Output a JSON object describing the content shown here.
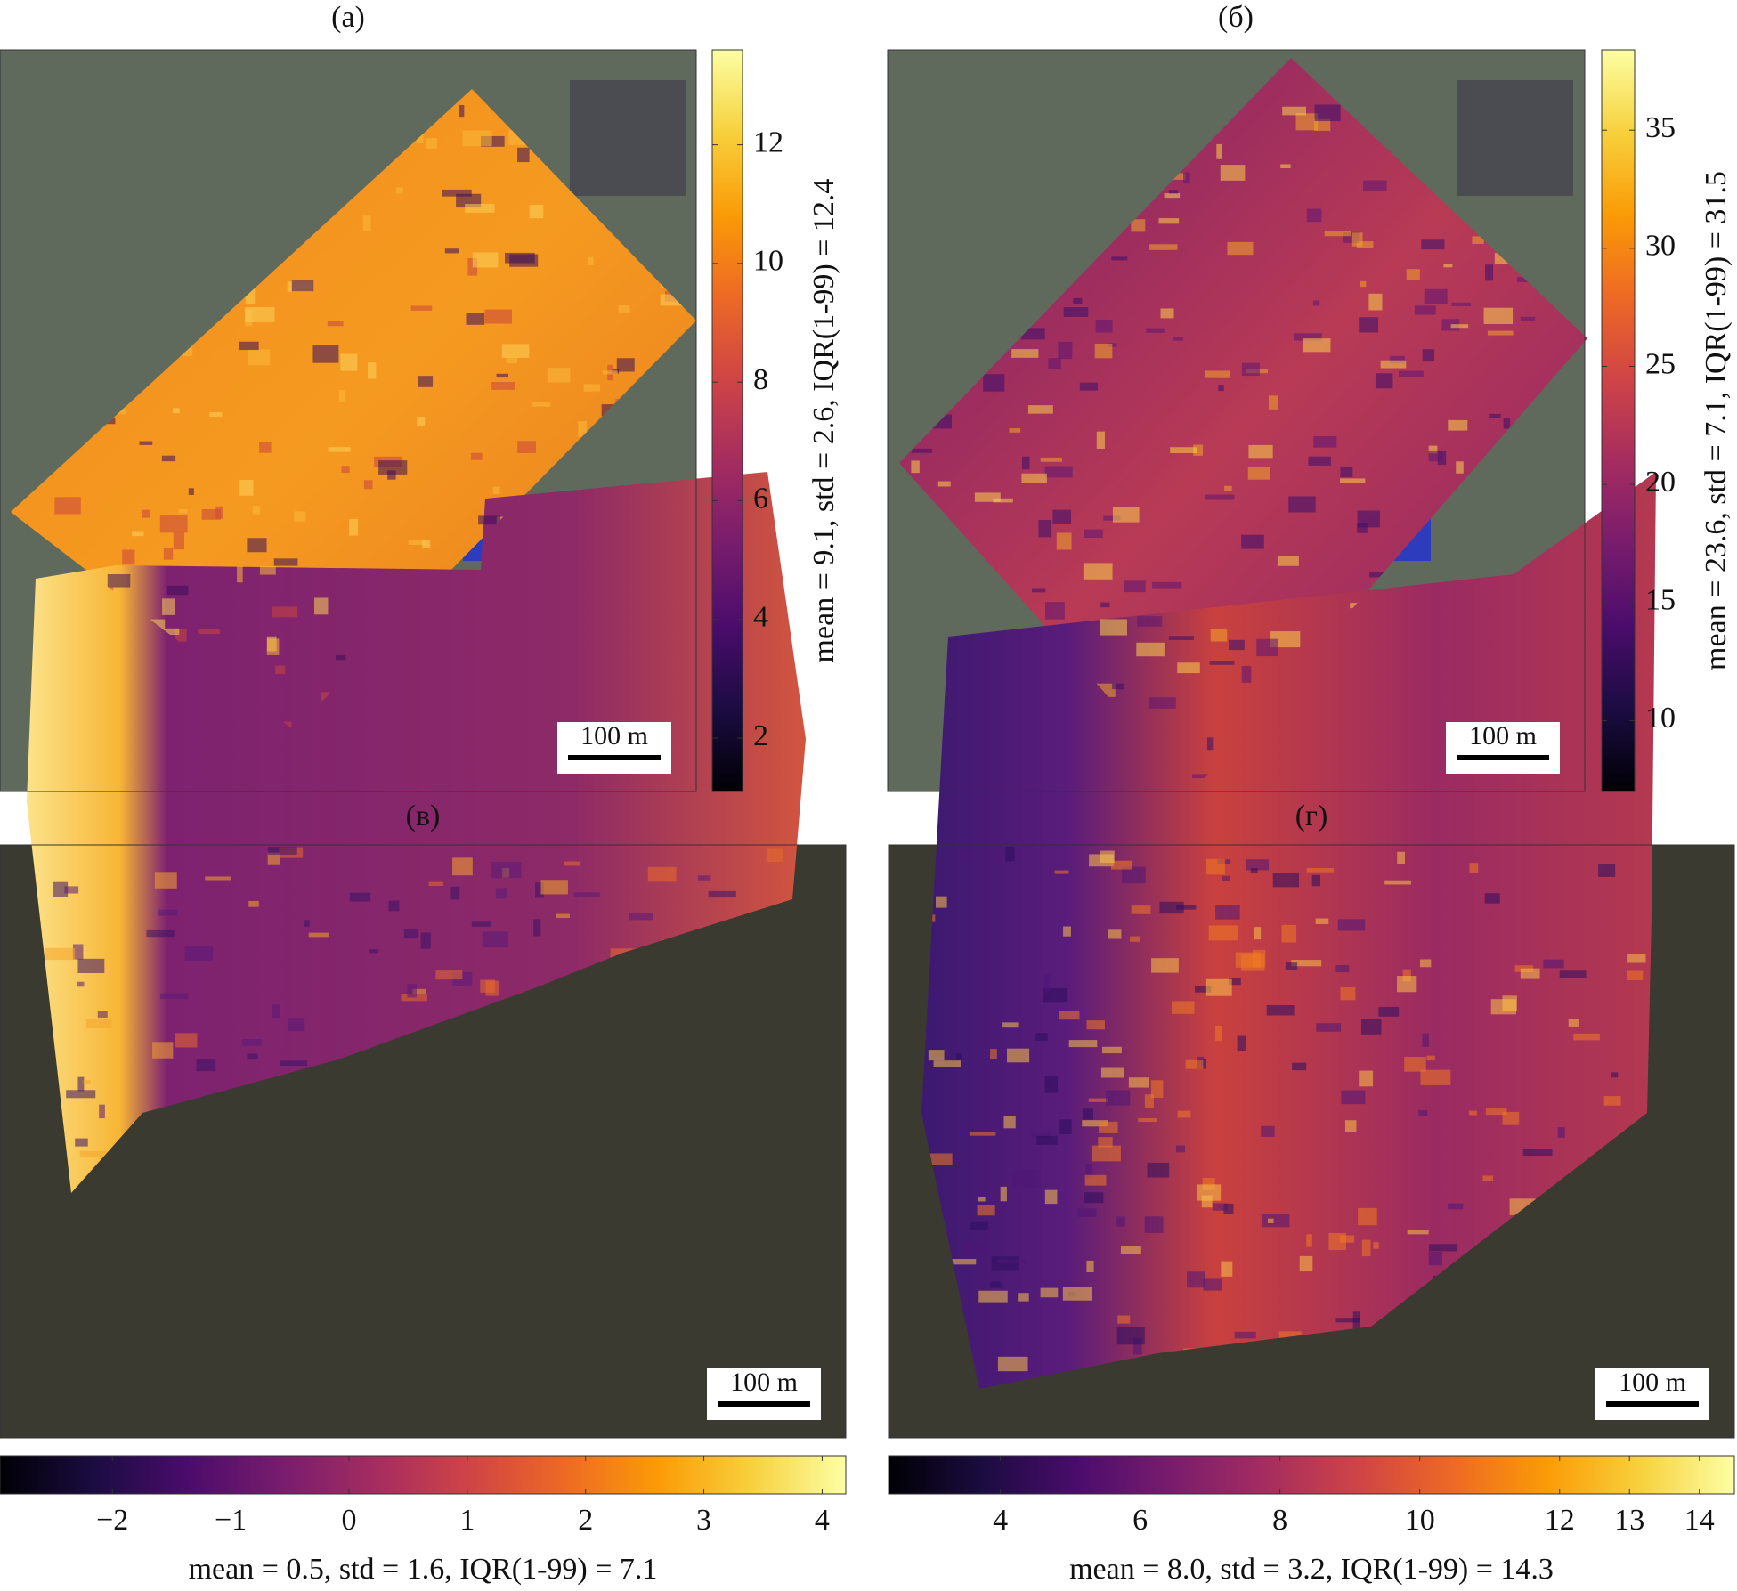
{
  "chart_data": [
    {
      "type": "colormap",
      "title": "(а)",
      "label": "mean = 9.1, std = 2.6, IQR(1-99) = 12.4",
      "colormap": "inferno",
      "orientation": "vertical",
      "scale_bar": "100 m",
      "ylim": [
        1.1,
        13.6
      ],
      "yticks": [
        2,
        4,
        6,
        8,
        10,
        12
      ]
    },
    {
      "type": "colormap",
      "title": "(б)",
      "label": "mean = 23.6, std = 7.1, IQR(1-99) = 31.5",
      "colormap": "inferno",
      "orientation": "vertical",
      "scale_bar": "100 m",
      "ylim": [
        7.0,
        38.4
      ],
      "yticks": [
        10,
        15,
        20,
        25,
        30,
        35
      ]
    },
    {
      "type": "colormap",
      "title": "(в)",
      "label": "mean = 0.5, std = 1.6, IQR(1-99) = 7.1",
      "colormap": "inferno",
      "orientation": "horizontal",
      "scale_bar": "100 m",
      "xlim": [
        -2.95,
        4.2
      ],
      "xticks": [
        {
          "value": -2,
          "label": "−2"
        },
        {
          "value": -1,
          "label": "−1"
        },
        0,
        1,
        2,
        3,
        4
      ]
    },
    {
      "type": "colormap",
      "title": "(г)",
      "label": "mean = 8.0, std = 3.2, IQR(1-99) = 14.3",
      "colormap": "inferno",
      "orientation": "horizontal",
      "scale_bar": "100 m",
      "xlim": [
        2.4,
        14.5
      ],
      "xticks": [
        4,
        6,
        8,
        10,
        12,
        13,
        14
      ]
    }
  ]
}
